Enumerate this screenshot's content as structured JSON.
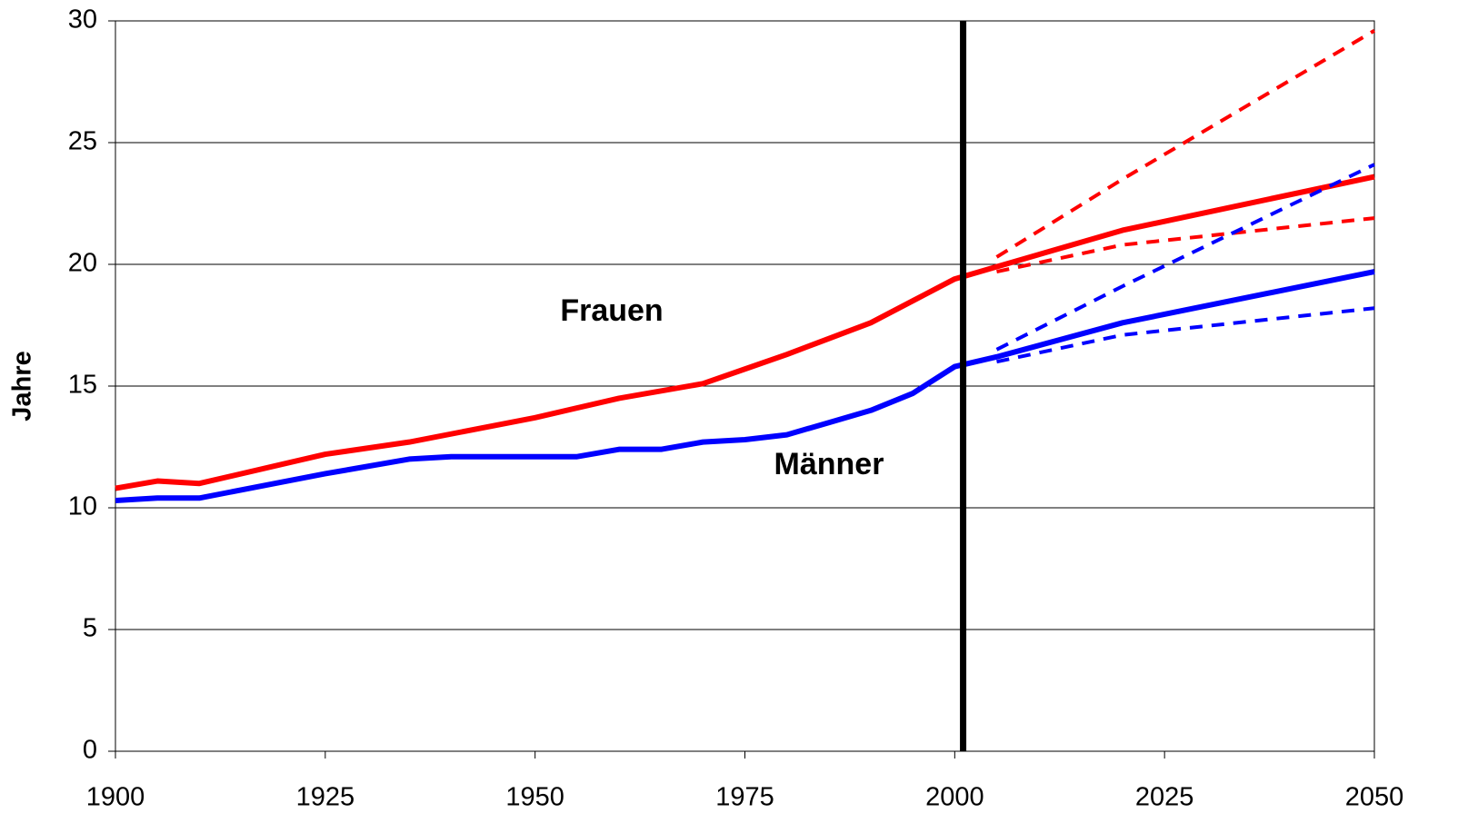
{
  "chart_data": {
    "type": "line",
    "ylabel": "Jahre",
    "annotations": [
      "Frauen",
      "Männer"
    ],
    "xlim": [
      1900,
      2050
    ],
    "xticks": [
      1900,
      1925,
      1950,
      1975,
      2000,
      2025,
      2050
    ],
    "ylim": [
      0,
      30
    ],
    "yticks": [
      0,
      5,
      10,
      15,
      20,
      25,
      30
    ],
    "grid": true,
    "vline": 2001,
    "series": [
      {
        "name": "Frauen",
        "color": "#ff0000",
        "dash": false,
        "x": [
          1900,
          1905,
          1910,
          1925,
          1935,
          1950,
          1960,
          1970,
          1975,
          1980,
          1990,
          1995,
          2000,
          2005,
          2020,
          2050
        ],
        "values": [
          10.8,
          11.1,
          11.0,
          12.2,
          12.7,
          13.7,
          14.5,
          15.1,
          15.7,
          16.3,
          17.6,
          18.5,
          19.4,
          19.9,
          21.4,
          23.6
        ]
      },
      {
        "name": "Männer",
        "color": "#0000ff",
        "dash": false,
        "x": [
          1900,
          1905,
          1910,
          1925,
          1935,
          1940,
          1955,
          1960,
          1965,
          1970,
          1975,
          1980,
          1985,
          1990,
          1995,
          2000,
          2005,
          2020,
          2050
        ],
        "values": [
          10.3,
          10.4,
          10.4,
          11.4,
          12.0,
          12.1,
          12.1,
          12.4,
          12.4,
          12.7,
          12.8,
          13.0,
          13.5,
          14.0,
          14.7,
          15.8,
          16.2,
          17.6,
          19.7
        ]
      },
      {
        "color": "#ff0000",
        "dash": true,
        "x": [
          2005,
          2020,
          2050
        ],
        "values": [
          20.3,
          23.5,
          29.6
        ]
      },
      {
        "color": "#ff0000",
        "dash": true,
        "x": [
          2005,
          2020,
          2050
        ],
        "values": [
          19.7,
          20.8,
          21.9
        ]
      },
      {
        "color": "#0000ff",
        "dash": true,
        "x": [
          2005,
          2020,
          2050
        ],
        "values": [
          16.5,
          19.1,
          24.1
        ]
      },
      {
        "color": "#0000ff",
        "dash": true,
        "x": [
          2005,
          2020,
          2050
        ],
        "values": [
          16.0,
          17.1,
          18.2
        ]
      }
    ]
  }
}
